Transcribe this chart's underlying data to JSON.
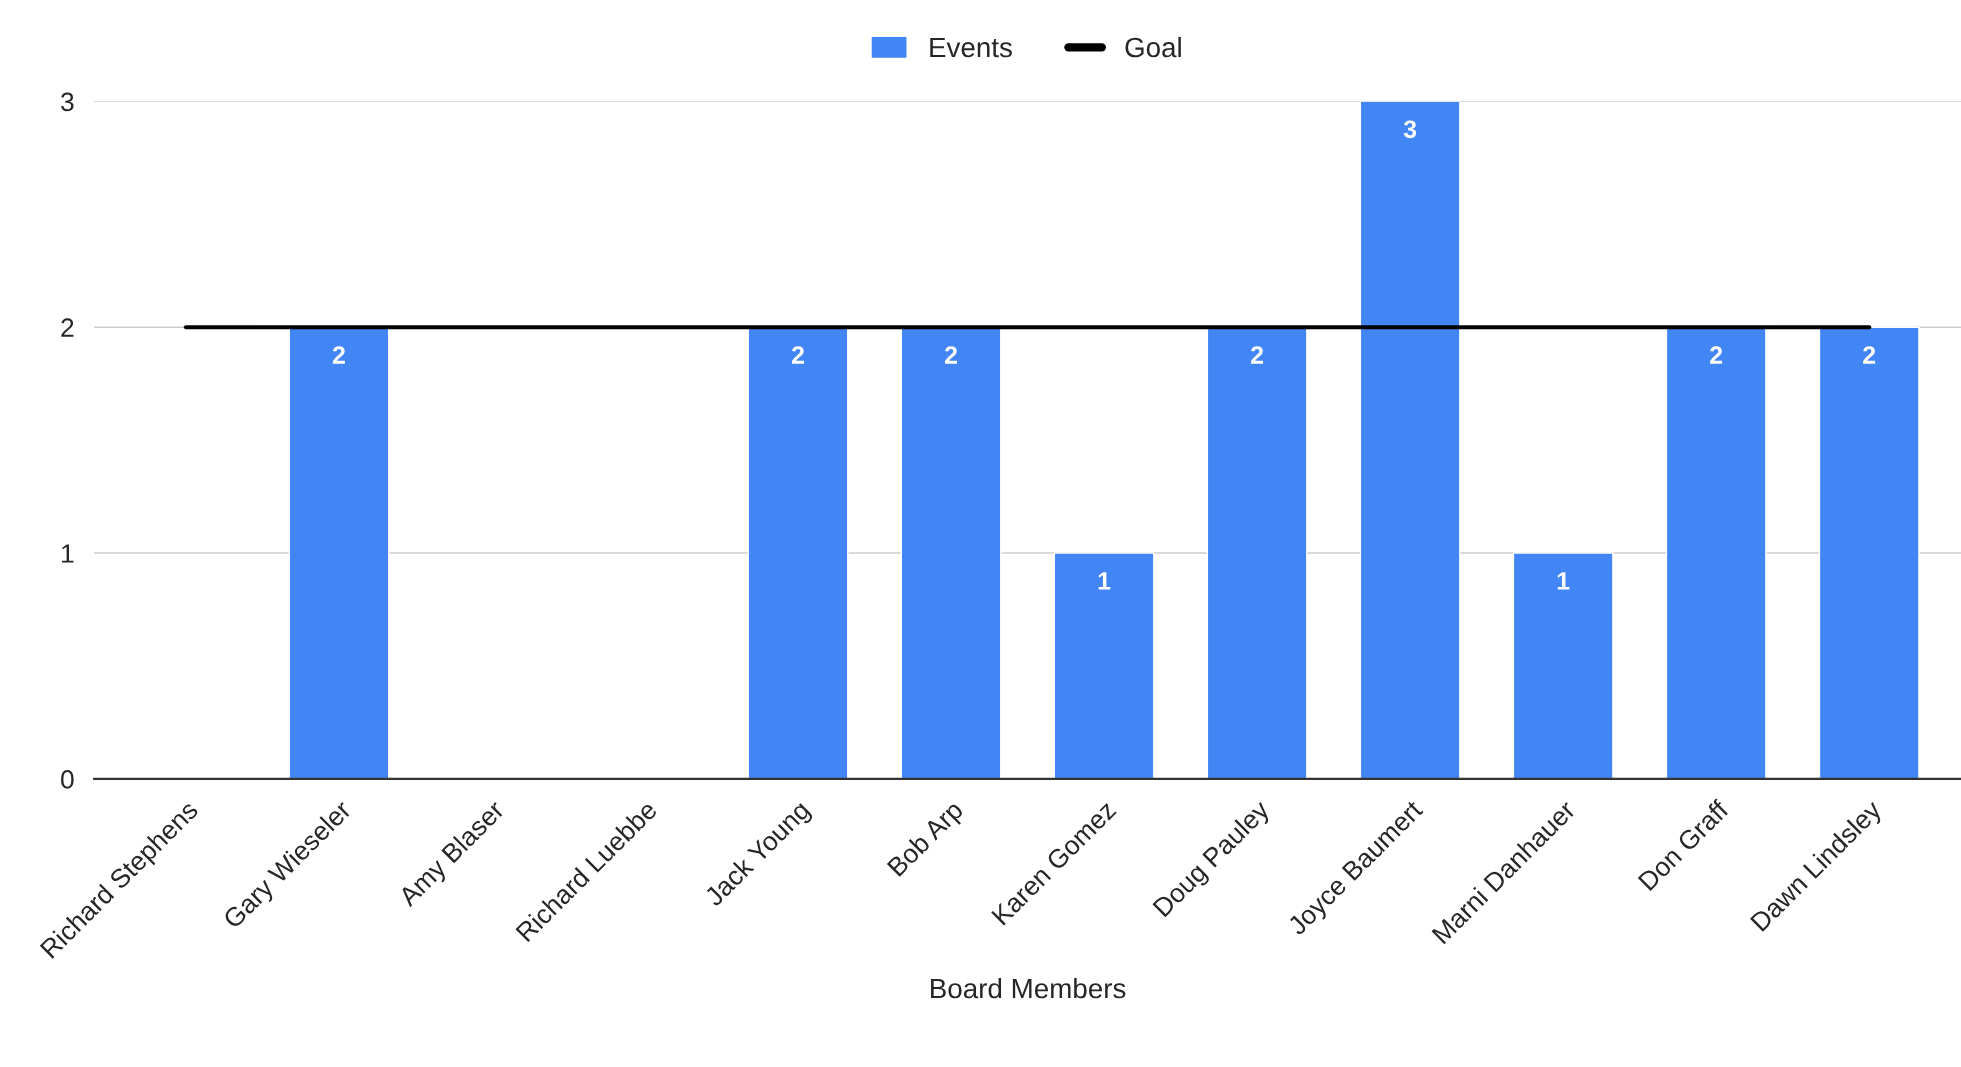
{
  "chart_data": {
    "type": "bar",
    "xlabel": "Board Members",
    "categories": [
      "Richard Stephens",
      "Gary Wieseler",
      "Amy Blaser",
      "Richard Luebbe",
      "Jack Young",
      "Bob Arp",
      "Karen Gomez",
      "Doug Pauley",
      "Joyce Baumert",
      "Marni Danhauer",
      "Don Graff",
      "Dawn Lindsley"
    ],
    "series": [
      {
        "name": "Events",
        "color": "#4285f4",
        "values": [
          0,
          2,
          0,
          0,
          2,
          2,
          1,
          2,
          3,
          1,
          2,
          2
        ],
        "value_labels": [
          null,
          "2",
          null,
          null,
          "2",
          "2",
          "1",
          "2",
          "3",
          "1",
          "2",
          "2"
        ]
      },
      {
        "name": "Goal",
        "type": "line",
        "color": "#000000",
        "values": [
          2,
          2,
          2,
          2,
          2,
          2,
          2,
          2,
          2,
          2,
          2,
          2
        ]
      }
    ],
    "ylim": [
      0,
      3
    ],
    "yticks": [
      0,
      1,
      2,
      3
    ],
    "grid": "y",
    "legend": "top"
  }
}
